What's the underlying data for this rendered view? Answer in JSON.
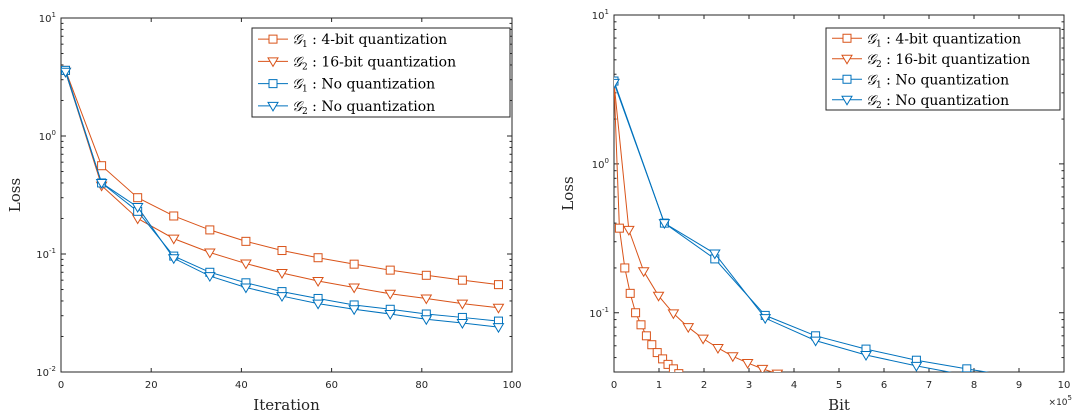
{
  "colors": {
    "orange": "#d95319",
    "blue": "#0072bd",
    "axis": "#262626"
  },
  "chart_data": [
    {
      "type": "line",
      "title": "",
      "xlabel": "Iteration",
      "ylabel": "Loss",
      "yscale": "log",
      "xlim": [
        0,
        100
      ],
      "ylim": [
        0.01,
        10
      ],
      "grid": false,
      "legend_position": "top-right",
      "x_ticks": [
        "0",
        "20",
        "40",
        "60",
        "80",
        "100"
      ],
      "y_ticks": [
        {
          "base": "10",
          "exp": "-2"
        },
        {
          "base": "10",
          "exp": "-1"
        },
        {
          "base": "10",
          "exp": "0"
        },
        {
          "base": "10",
          "exp": "1"
        }
      ],
      "series": [
        {
          "name": "G_1 : 4-bit quantization",
          "legend_symbol": "𝒢",
          "legend_sub": "1",
          "legend_rest": " : 4-bit quantization",
          "color": "orange",
          "marker": "square",
          "x": [
            1,
            9,
            17,
            25,
            33,
            41,
            49,
            57,
            65,
            73,
            81,
            89,
            97
          ],
          "y": [
            3.6,
            0.56,
            0.3,
            0.21,
            0.16,
            0.128,
            0.107,
            0.093,
            0.082,
            0.073,
            0.066,
            0.06,
            0.055
          ]
        },
        {
          "name": "G_2 : 16-bit quantization",
          "legend_symbol": "𝒢",
          "legend_sub": "2",
          "legend_rest": " : 16-bit quantization",
          "color": "orange",
          "marker": "triangle-down",
          "x": [
            1,
            9,
            17,
            25,
            33,
            41,
            49,
            57,
            65,
            73,
            81,
            89,
            97
          ],
          "y": [
            3.5,
            0.38,
            0.2,
            0.135,
            0.103,
            0.083,
            0.069,
            0.059,
            0.052,
            0.046,
            0.042,
            0.038,
            0.035
          ]
        },
        {
          "name": "G_1 : No quantization",
          "legend_symbol": "𝒢",
          "legend_sub": "1",
          "legend_rest": " : No quantization",
          "color": "blue",
          "marker": "square",
          "x": [
            1,
            9,
            17,
            25,
            33,
            41,
            49,
            57,
            65,
            73,
            81,
            89,
            97
          ],
          "y": [
            3.6,
            0.4,
            0.23,
            0.096,
            0.07,
            0.057,
            0.048,
            0.042,
            0.037,
            0.034,
            0.031,
            0.029,
            0.027
          ]
        },
        {
          "name": "G_2 : No quantization",
          "legend_symbol": "𝒢",
          "legend_sub": "2",
          "legend_rest": " : No quantization",
          "color": "blue",
          "marker": "triangle-down",
          "x": [
            1,
            9,
            17,
            25,
            33,
            41,
            49,
            57,
            65,
            73,
            81,
            89,
            97
          ],
          "y": [
            3.5,
            0.4,
            0.25,
            0.092,
            0.065,
            0.052,
            0.044,
            0.038,
            0.034,
            0.031,
            0.028,
            0.026,
            0.024
          ]
        }
      ]
    },
    {
      "type": "line",
      "title": "",
      "xlabel": "Bit",
      "ylabel": "Loss",
      "yscale": "log",
      "xlim": [
        0,
        1000000
      ],
      "ylim": [
        0.04,
        10
      ],
      "x_exponent": {
        "base": "×10",
        "exp": "5"
      },
      "grid": false,
      "legend_position": "top-right",
      "x_ticks": [
        "0",
        "1",
        "2",
        "3",
        "4",
        "5",
        "6",
        "7",
        "8",
        "9",
        "10"
      ],
      "y_ticks": [
        {
          "base": "10",
          "exp": "-1"
        },
        {
          "base": "10",
          "exp": "0"
        },
        {
          "base": "10",
          "exp": "1"
        }
      ],
      "series": [
        {
          "name": "G_1 : 4-bit quantization",
          "legend_symbol": "𝒢",
          "legend_sub": "1",
          "legend_rest": " : 4-bit quantization",
          "color": "orange",
          "marker": "square",
          "x": [
            0,
            12000,
            24000,
            36000,
            48000,
            60000,
            72000,
            84000,
            96000,
            108000,
            120000,
            132000,
            144000
          ],
          "y": [
            3.6,
            0.37,
            0.2,
            0.135,
            0.1,
            0.083,
            0.07,
            0.061,
            0.054,
            0.049,
            0.045,
            0.042,
            0.039
          ]
        },
        {
          "name": "G_2 : 16-bit quantization",
          "legend_symbol": "𝒢",
          "legend_sub": "2",
          "legend_rest": " : 16-bit quantization",
          "color": "orange",
          "marker": "triangle-down",
          "x": [
            0,
            33000,
            66000,
            99000,
            132000,
            165000,
            198000,
            231000,
            264000,
            297000,
            330000,
            363000,
            396000
          ],
          "y": [
            3.5,
            0.36,
            0.19,
            0.13,
            0.099,
            0.08,
            0.067,
            0.058,
            0.051,
            0.046,
            0.042,
            0.039,
            0.036
          ]
        },
        {
          "name": "G_1 : No quantization",
          "legend_symbol": "𝒢",
          "legend_sub": "1",
          "legend_rest": " : No quantization",
          "color": "blue",
          "marker": "square",
          "x": [
            0,
            112000,
            224000,
            336000,
            448000,
            560000,
            672000,
            784000,
            896000,
            1008000
          ],
          "y": [
            3.6,
            0.4,
            0.23,
            0.096,
            0.07,
            0.057,
            0.048,
            0.042,
            0.037,
            0.034
          ]
        },
        {
          "name": "G_2 : No quantization",
          "legend_symbol": "𝒢",
          "legend_sub": "2",
          "legend_rest": " : No quantization",
          "color": "blue",
          "marker": "triangle-down",
          "x": [
            0,
            112000,
            224000,
            336000,
            448000,
            560000,
            672000,
            784000,
            896000,
            1008000
          ],
          "y": [
            3.5,
            0.4,
            0.25,
            0.092,
            0.065,
            0.052,
            0.044,
            0.038,
            0.034,
            0.031
          ]
        }
      ]
    }
  ]
}
